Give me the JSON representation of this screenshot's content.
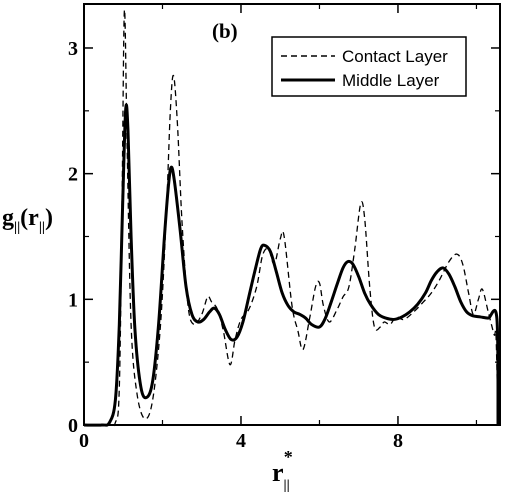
{
  "chart_data": {
    "type": "line",
    "panel_label": "(b)",
    "xlabel": {
      "main": "r",
      "sub": "||",
      "sup": "*"
    },
    "ylabel": {
      "g": "g",
      "sub": "||",
      "open": "(",
      "r": "r",
      "close": ")"
    },
    "xlim": [
      0,
      10.6
    ],
    "ylim": [
      0,
      3.35
    ],
    "xticks": [
      0,
      4,
      8
    ],
    "xtick_labels": [
      "0",
      "4",
      "8"
    ],
    "yticks": [
      0,
      1,
      2,
      3
    ],
    "ytick_labels": [
      "0",
      "1",
      "2",
      "3"
    ],
    "grid": false,
    "legend_position": "top-right",
    "series": [
      {
        "name": "Contact Layer",
        "style": "dashed",
        "color": "#000000",
        "points": [
          [
            0,
            0
          ],
          [
            0.6,
            0
          ],
          [
            0.8,
            0.02
          ],
          [
            0.9,
            0.3
          ],
          [
            0.97,
            1.8
          ],
          [
            1.03,
            3.3
          ],
          [
            1.1,
            2.2
          ],
          [
            1.2,
            0.8
          ],
          [
            1.35,
            0.25
          ],
          [
            1.55,
            0.05
          ],
          [
            1.75,
            0.2
          ],
          [
            1.95,
            0.8
          ],
          [
            2.1,
            1.7
          ],
          [
            2.2,
            2.5
          ],
          [
            2.28,
            2.78
          ],
          [
            2.38,
            2.4
          ],
          [
            2.5,
            1.6
          ],
          [
            2.65,
            0.95
          ],
          [
            2.8,
            0.8
          ],
          [
            3.0,
            0.88
          ],
          [
            3.15,
            1.02
          ],
          [
            3.25,
            0.98
          ],
          [
            3.4,
            0.92
          ],
          [
            3.55,
            0.75
          ],
          [
            3.72,
            0.48
          ],
          [
            3.85,
            0.68
          ],
          [
            4.0,
            0.84
          ],
          [
            4.2,
            0.92
          ],
          [
            4.4,
            1.1
          ],
          [
            4.55,
            1.35
          ],
          [
            4.7,
            1.4
          ],
          [
            4.85,
            1.28
          ],
          [
            5.0,
            1.48
          ],
          [
            5.1,
            1.5
          ],
          [
            5.3,
            0.95
          ],
          [
            5.45,
            0.75
          ],
          [
            5.58,
            0.6
          ],
          [
            5.75,
            0.85
          ],
          [
            5.9,
            1.1
          ],
          [
            6.0,
            1.13
          ],
          [
            6.1,
            0.95
          ],
          [
            6.25,
            0.82
          ],
          [
            6.45,
            0.92
          ],
          [
            6.6,
            1.02
          ],
          [
            6.75,
            1.1
          ],
          [
            6.9,
            1.4
          ],
          [
            7.05,
            1.76
          ],
          [
            7.15,
            1.65
          ],
          [
            7.28,
            1.1
          ],
          [
            7.4,
            0.78
          ],
          [
            7.55,
            0.78
          ],
          [
            7.65,
            0.82
          ],
          [
            7.8,
            0.8
          ],
          [
            7.95,
            0.86
          ],
          [
            8.15,
            0.84
          ],
          [
            8.4,
            0.9
          ],
          [
            8.65,
            0.98
          ],
          [
            8.85,
            1.05
          ],
          [
            9.05,
            1.15
          ],
          [
            9.3,
            1.3
          ],
          [
            9.5,
            1.36
          ],
          [
            9.65,
            1.28
          ],
          [
            9.8,
            1.05
          ],
          [
            9.92,
            0.88
          ],
          [
            10.05,
            1.0
          ],
          [
            10.15,
            1.08
          ],
          [
            10.3,
            0.9
          ],
          [
            10.45,
            0.72
          ],
          [
            10.5,
            0.7
          ],
          [
            10.55,
            0.0
          ]
        ]
      },
      {
        "name": "Middle Layer",
        "style": "solid",
        "color": "#000000",
        "points": [
          [
            0,
            0
          ],
          [
            0.45,
            0
          ],
          [
            0.65,
            0.02
          ],
          [
            0.8,
            0.2
          ],
          [
            0.9,
            0.8
          ],
          [
            0.98,
            1.7
          ],
          [
            1.06,
            2.5
          ],
          [
            1.12,
            2.35
          ],
          [
            1.2,
            1.5
          ],
          [
            1.3,
            0.75
          ],
          [
            1.45,
            0.3
          ],
          [
            1.6,
            0.22
          ],
          [
            1.75,
            0.35
          ],
          [
            1.9,
            0.8
          ],
          [
            2.05,
            1.5
          ],
          [
            2.15,
            1.9
          ],
          [
            2.22,
            2.05
          ],
          [
            2.3,
            1.95
          ],
          [
            2.45,
            1.55
          ],
          [
            2.6,
            1.1
          ],
          [
            2.75,
            0.88
          ],
          [
            2.9,
            0.82
          ],
          [
            3.05,
            0.84
          ],
          [
            3.2,
            0.9
          ],
          [
            3.32,
            0.93
          ],
          [
            3.45,
            0.88
          ],
          [
            3.6,
            0.76
          ],
          [
            3.75,
            0.68
          ],
          [
            3.9,
            0.7
          ],
          [
            4.05,
            0.82
          ],
          [
            4.2,
            1.02
          ],
          [
            4.35,
            1.22
          ],
          [
            4.5,
            1.4
          ],
          [
            4.6,
            1.43
          ],
          [
            4.75,
            1.38
          ],
          [
            4.9,
            1.22
          ],
          [
            5.05,
            1.05
          ],
          [
            5.2,
            0.95
          ],
          [
            5.35,
            0.9
          ],
          [
            5.5,
            0.88
          ],
          [
            5.65,
            0.85
          ],
          [
            5.8,
            0.8
          ],
          [
            6.0,
            0.78
          ],
          [
            6.15,
            0.85
          ],
          [
            6.3,
            0.98
          ],
          [
            6.45,
            1.12
          ],
          [
            6.6,
            1.25
          ],
          [
            6.72,
            1.3
          ],
          [
            6.85,
            1.28
          ],
          [
            7.0,
            1.18
          ],
          [
            7.15,
            1.05
          ],
          [
            7.3,
            0.96
          ],
          [
            7.5,
            0.88
          ],
          [
            7.7,
            0.85
          ],
          [
            7.9,
            0.84
          ],
          [
            8.1,
            0.86
          ],
          [
            8.3,
            0.9
          ],
          [
            8.5,
            0.96
          ],
          [
            8.7,
            1.05
          ],
          [
            8.85,
            1.15
          ],
          [
            9.0,
            1.22
          ],
          [
            9.15,
            1.25
          ],
          [
            9.3,
            1.2
          ],
          [
            9.45,
            1.1
          ],
          [
            9.6,
            0.98
          ],
          [
            9.75,
            0.9
          ],
          [
            9.9,
            0.87
          ],
          [
            10.1,
            0.86
          ],
          [
            10.3,
            0.85
          ],
          [
            10.52,
            0.85
          ],
          [
            10.55,
            0.0
          ]
        ]
      }
    ]
  }
}
